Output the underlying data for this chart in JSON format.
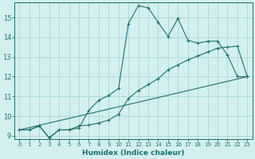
{
  "xlabel": "Humidex (Indice chaleur)",
  "bg_color": "#d4efef",
  "grid_color": "#afd8d8",
  "line_color": "#1a7070",
  "xlim": [
    -0.5,
    23.5
  ],
  "ylim": [
    8.85,
    15.75
  ],
  "xticks": [
    0,
    1,
    2,
    3,
    4,
    5,
    6,
    7,
    8,
    9,
    10,
    11,
    12,
    13,
    14,
    15,
    16,
    17,
    18,
    19,
    20,
    21,
    22,
    23
  ],
  "yticks": [
    9,
    10,
    11,
    12,
    13,
    14,
    15
  ],
  "line1_x": [
    0,
    1,
    2,
    3,
    4,
    5,
    6,
    7,
    8,
    9,
    10,
    11,
    12,
    13,
    14,
    15,
    16,
    17,
    18,
    19,
    20,
    21,
    22,
    23
  ],
  "line1_y": [
    9.3,
    9.3,
    9.5,
    8.9,
    9.3,
    9.3,
    9.4,
    10.3,
    10.8,
    11.05,
    11.4,
    14.7,
    15.6,
    15.5,
    14.75,
    14.05,
    14.95,
    13.85,
    13.7,
    13.8,
    13.8,
    13.1,
    12.0,
    12.0
  ],
  "line2_x": [
    0,
    1,
    2,
    3,
    4,
    5,
    6,
    7,
    8,
    9,
    10,
    11,
    12,
    13,
    14,
    15,
    16,
    17,
    18,
    19,
    20,
    21,
    22,
    23
  ],
  "line2_y": [
    9.3,
    9.3,
    9.5,
    8.9,
    9.3,
    9.3,
    9.5,
    9.55,
    9.65,
    9.8,
    10.1,
    10.9,
    11.3,
    11.6,
    11.9,
    12.35,
    12.6,
    12.85,
    13.05,
    13.25,
    13.45,
    13.5,
    13.55,
    12.0
  ],
  "line3_x": [
    0,
    23
  ],
  "line3_y": [
    9.3,
    12.0
  ]
}
